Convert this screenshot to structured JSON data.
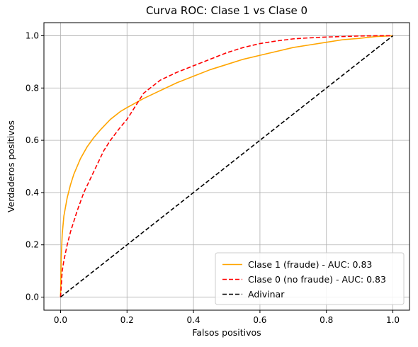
{
  "chart_data": {
    "type": "line",
    "title": "Curva ROC: Clase 1 vs Clase 0",
    "xlabel": "Falsos positivos",
    "ylabel": "Verdaderos positivos",
    "xlim": [
      -0.05,
      1.05
    ],
    "ylim": [
      -0.05,
      1.05
    ],
    "xticks": [
      0.0,
      0.2,
      0.4,
      0.6,
      0.8,
      1.0
    ],
    "yticks": [
      0.0,
      0.2,
      0.4,
      0.6,
      0.8,
      1.0
    ],
    "tick_labels": [
      "0.0",
      "0.2",
      "0.4",
      "0.6",
      "0.8",
      "1.0"
    ],
    "grid": true,
    "legend_position": "lower-right",
    "series": [
      {
        "name": "Clase 1 (fraude) - AUC: 0.83",
        "color": "#ffa500",
        "dash": "solid",
        "x": [
          0.0,
          0.002,
          0.005,
          0.01,
          0.02,
          0.03,
          0.04,
          0.05,
          0.06,
          0.08,
          0.1,
          0.12,
          0.15,
          0.18,
          0.2,
          0.25,
          0.3,
          0.35,
          0.4,
          0.45,
          0.5,
          0.55,
          0.6,
          0.65,
          0.7,
          0.75,
          0.8,
          0.85,
          0.9,
          0.95,
          1.0
        ],
        "y": [
          0.0,
          0.15,
          0.24,
          0.31,
          0.38,
          0.43,
          0.47,
          0.5,
          0.53,
          0.575,
          0.61,
          0.64,
          0.68,
          0.71,
          0.725,
          0.76,
          0.79,
          0.82,
          0.845,
          0.87,
          0.89,
          0.91,
          0.925,
          0.94,
          0.955,
          0.965,
          0.975,
          0.985,
          0.99,
          0.997,
          1.0
        ]
      },
      {
        "name": "Clase 0 (no fraude) - AUC: 0.83",
        "color": "#ff0000",
        "dash": "dashed",
        "x": [
          0.0,
          0.005,
          0.01,
          0.02,
          0.03,
          0.05,
          0.07,
          0.1,
          0.13,
          0.15,
          0.18,
          0.2,
          0.23,
          0.25,
          0.28,
          0.3,
          0.35,
          0.4,
          0.45,
          0.5,
          0.55,
          0.6,
          0.65,
          0.7,
          0.75,
          0.8,
          0.85,
          0.9,
          0.95,
          1.0
        ],
        "y": [
          0.0,
          0.1,
          0.14,
          0.2,
          0.25,
          0.33,
          0.4,
          0.48,
          0.56,
          0.6,
          0.65,
          0.68,
          0.74,
          0.78,
          0.81,
          0.83,
          0.86,
          0.885,
          0.91,
          0.935,
          0.955,
          0.97,
          0.98,
          0.988,
          0.992,
          0.995,
          0.997,
          0.999,
          1.0,
          1.0
        ]
      },
      {
        "name": "Adivinar",
        "color": "#000000",
        "dash": "dashed",
        "x": [
          0.0,
          1.0
        ],
        "y": [
          0.0,
          1.0
        ]
      }
    ]
  }
}
